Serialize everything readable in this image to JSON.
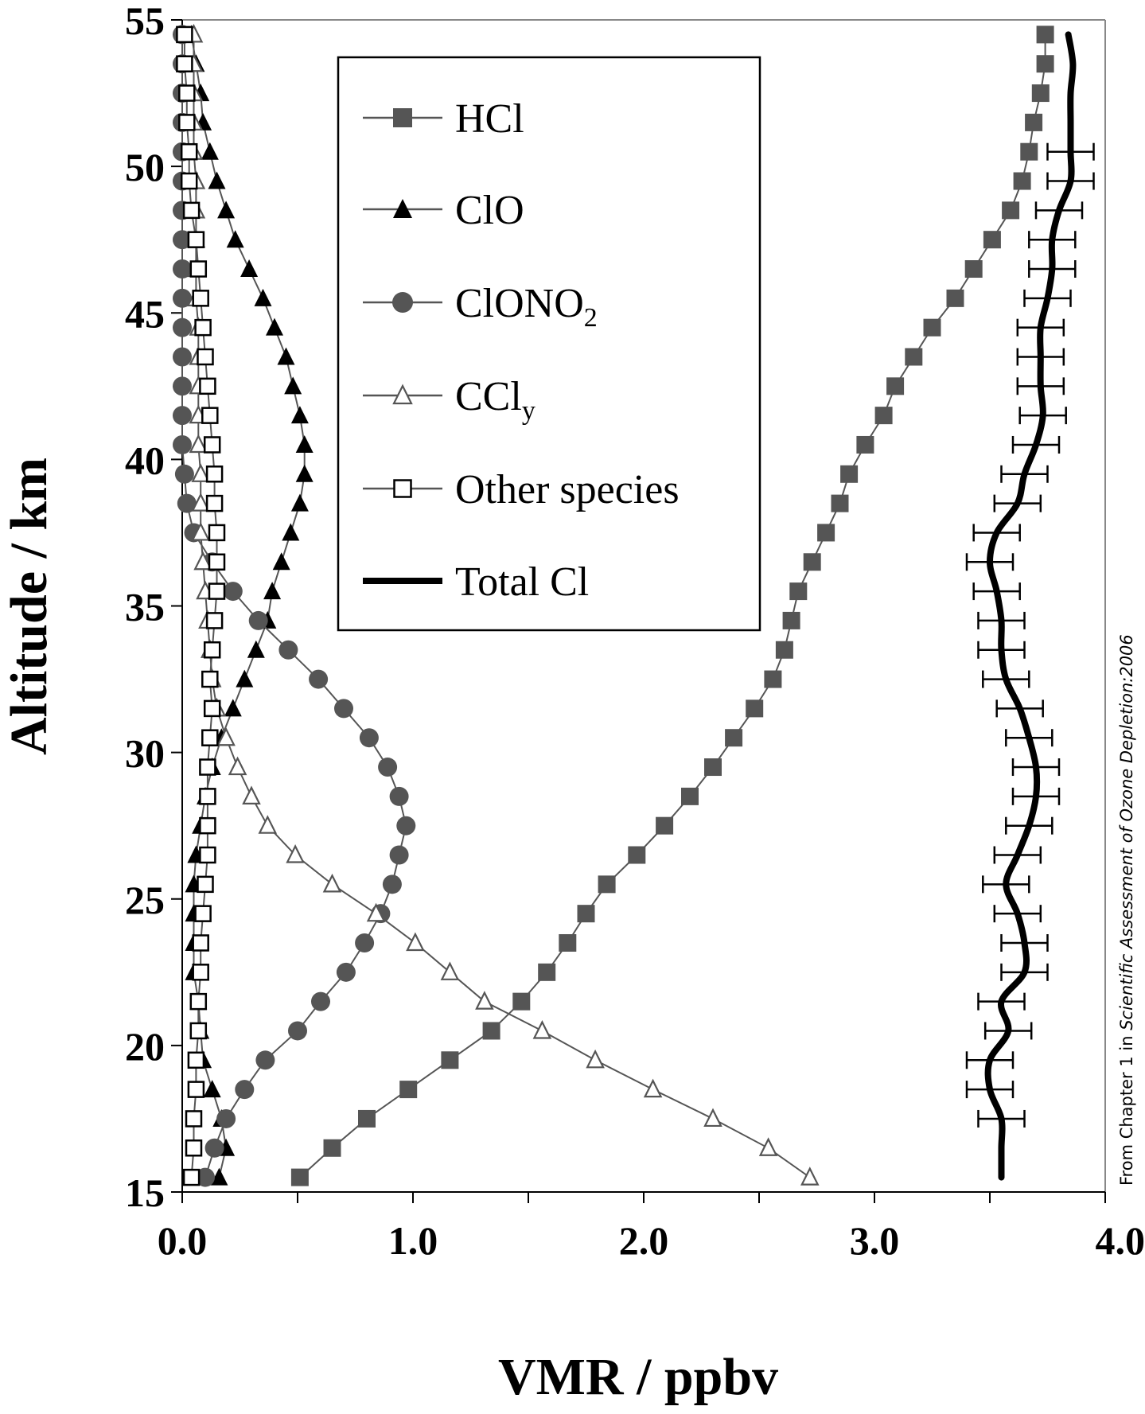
{
  "chart_data": {
    "type": "line",
    "xlabel": "VMR / ppbv",
    "ylabel": "Altitude / km",
    "xlim": [
      0,
      4
    ],
    "ylim": [
      15,
      55
    ],
    "xticks": [
      "0.0",
      "1.0",
      "2.0",
      "3.0",
      "4.0"
    ],
    "yticks": [
      "15",
      "20",
      "25",
      "30",
      "35",
      "40",
      "45",
      "50",
      "55"
    ],
    "grid": false,
    "legend_position": "top-center",
    "credit_prefix": "From Chapter 1 in ",
    "credit_italic": "Scientific Assessment of Ozone Depletion:2006",
    "colors": {
      "gray": "#555555",
      "black": "#000000"
    },
    "series": [
      {
        "name": "HCl",
        "marker": "square-filled",
        "color": "#555555",
        "y": [
          15.5,
          16.5,
          17.5,
          18.5,
          19.5,
          20.5,
          21.5,
          22.5,
          23.5,
          24.5,
          25.5,
          26.5,
          27.5,
          28.5,
          29.5,
          30.5,
          31.5,
          32.5,
          33.5,
          34.5,
          35.5,
          36.5,
          37.5,
          38.5,
          39.5,
          40.5,
          41.5,
          42.5,
          43.5,
          44.5,
          45.5,
          46.5,
          47.5,
          48.5,
          49.5,
          50.5,
          51.5,
          52.5,
          53.5,
          54.5
        ],
        "x": [
          0.51,
          0.65,
          0.8,
          0.98,
          1.16,
          1.34,
          1.47,
          1.58,
          1.67,
          1.75,
          1.84,
          1.97,
          2.09,
          2.2,
          2.3,
          2.39,
          2.48,
          2.56,
          2.61,
          2.64,
          2.67,
          2.73,
          2.79,
          2.85,
          2.89,
          2.96,
          3.04,
          3.09,
          3.17,
          3.25,
          3.35,
          3.43,
          3.51,
          3.59,
          3.64,
          3.67,
          3.69,
          3.72,
          3.74,
          3.74
        ]
      },
      {
        "name": "ClO",
        "marker": "triangle-filled",
        "color": "#000000",
        "y": [
          15.5,
          16.5,
          17.5,
          18.5,
          19.5,
          20.5,
          21.5,
          22.5,
          23.5,
          24.5,
          25.5,
          26.5,
          27.5,
          28.5,
          29.5,
          30.5,
          31.5,
          32.5,
          33.5,
          34.5,
          35.5,
          36.5,
          37.5,
          38.5,
          39.5,
          40.5,
          41.5,
          42.5,
          43.5,
          44.5,
          45.5,
          46.5,
          47.5,
          48.5,
          49.5,
          50.5,
          51.5,
          52.5,
          53.5,
          54.5
        ],
        "x": [
          0.16,
          0.19,
          0.17,
          0.13,
          0.09,
          0.08,
          0.07,
          0.05,
          0.05,
          0.05,
          0.05,
          0.06,
          0.08,
          0.1,
          0.13,
          0.17,
          0.22,
          0.27,
          0.32,
          0.37,
          0.39,
          0.43,
          0.47,
          0.51,
          0.53,
          0.53,
          0.51,
          0.48,
          0.45,
          0.4,
          0.35,
          0.29,
          0.23,
          0.19,
          0.15,
          0.12,
          0.09,
          0.08,
          0.06,
          0.04
        ]
      },
      {
        "name": "ClONO2",
        "marker": "circle-filled",
        "color": "#555555",
        "y": [
          15.5,
          16.5,
          17.5,
          18.5,
          19.5,
          20.5,
          21.5,
          22.5,
          23.5,
          24.5,
          25.5,
          26.5,
          27.5,
          28.5,
          29.5,
          30.5,
          31.5,
          32.5,
          33.5,
          34.5,
          35.5,
          36.5,
          37.5,
          38.5,
          39.5,
          40.5,
          41.5,
          42.5,
          43.5,
          44.5,
          45.5,
          46.5,
          47.5,
          48.5,
          49.5,
          50.5,
          51.5,
          52.5,
          53.5,
          54.5
        ],
        "x": [
          0.1,
          0.14,
          0.19,
          0.27,
          0.36,
          0.5,
          0.6,
          0.71,
          0.79,
          0.86,
          0.91,
          0.94,
          0.97,
          0.94,
          0.89,
          0.81,
          0.7,
          0.59,
          0.46,
          0.33,
          0.22,
          0.13,
          0.05,
          0.02,
          0.01,
          0.0,
          0.0,
          0.0,
          0.0,
          0.0,
          0.0,
          0.0,
          0.0,
          0.0,
          0.0,
          0.0,
          0.0,
          0.0,
          0.0,
          0.0
        ]
      },
      {
        "name": "CCly",
        "marker": "triangle-open",
        "color": "#555555",
        "y": [
          15.5,
          16.5,
          17.5,
          18.5,
          19.5,
          20.5,
          21.5,
          22.5,
          23.5,
          24.5,
          25.5,
          26.5,
          27.5,
          28.5,
          29.5,
          30.5,
          31.5,
          32.5,
          33.5,
          34.5,
          35.5,
          36.5,
          37.5,
          38.5,
          39.5,
          40.5,
          41.5,
          42.5,
          43.5,
          44.5,
          45.5,
          46.5,
          47.5,
          48.5,
          49.5,
          50.5,
          51.5,
          52.5,
          53.5,
          54.5
        ],
        "x": [
          2.72,
          2.54,
          2.3,
          2.04,
          1.79,
          1.56,
          1.31,
          1.16,
          1.01,
          0.84,
          0.65,
          0.49,
          0.37,
          0.3,
          0.24,
          0.19,
          0.15,
          0.13,
          0.12,
          0.11,
          0.1,
          0.09,
          0.08,
          0.08,
          0.08,
          0.07,
          0.07,
          0.07,
          0.07,
          0.07,
          0.06,
          0.06,
          0.06,
          0.06,
          0.06,
          0.05,
          0.05,
          0.05,
          0.05,
          0.05
        ]
      },
      {
        "name": "Other species",
        "marker": "square-open",
        "color": "#000000",
        "y": [
          15.5,
          16.5,
          17.5,
          18.5,
          19.5,
          20.5,
          21.5,
          22.5,
          23.5,
          24.5,
          25.5,
          26.5,
          27.5,
          28.5,
          29.5,
          30.5,
          31.5,
          32.5,
          33.5,
          34.5,
          35.5,
          36.5,
          37.5,
          38.5,
          39.5,
          40.5,
          41.5,
          42.5,
          43.5,
          44.5,
          45.5,
          46.5,
          47.5,
          48.5,
          49.5,
          50.5,
          51.5,
          52.5,
          53.5,
          54.5
        ],
        "x": [
          0.04,
          0.05,
          0.05,
          0.06,
          0.06,
          0.07,
          0.07,
          0.08,
          0.08,
          0.09,
          0.1,
          0.11,
          0.11,
          0.11,
          0.11,
          0.12,
          0.13,
          0.12,
          0.13,
          0.14,
          0.15,
          0.15,
          0.15,
          0.14,
          0.14,
          0.13,
          0.12,
          0.11,
          0.1,
          0.09,
          0.08,
          0.07,
          0.06,
          0.04,
          0.03,
          0.03,
          0.02,
          0.02,
          0.01,
          0.01
        ]
      },
      {
        "name": "Total Cl",
        "marker": "none",
        "color": "#000000",
        "error": 0.1,
        "y": [
          15.5,
          16.5,
          17.5,
          18.5,
          19.5,
          20.5,
          21.5,
          22.5,
          23.5,
          24.5,
          25.5,
          26.5,
          27.5,
          28.5,
          29.5,
          30.5,
          31.5,
          32.5,
          33.5,
          34.5,
          35.5,
          36.5,
          37.5,
          38.5,
          39.5,
          40.5,
          41.5,
          42.5,
          43.5,
          44.5,
          45.5,
          46.5,
          47.5,
          48.5,
          49.5,
          50.5,
          51.5,
          52.5,
          53.5,
          54.5
        ],
        "x": [
          3.55,
          3.55,
          3.55,
          3.5,
          3.5,
          3.58,
          3.55,
          3.65,
          3.65,
          3.62,
          3.57,
          3.62,
          3.67,
          3.7,
          3.7,
          3.67,
          3.63,
          3.57,
          3.55,
          3.55,
          3.53,
          3.5,
          3.53,
          3.62,
          3.65,
          3.7,
          3.73,
          3.72,
          3.72,
          3.72,
          3.75,
          3.77,
          3.77,
          3.8,
          3.85,
          3.85,
          3.85,
          3.85,
          3.86,
          3.84
        ]
      }
    ]
  }
}
